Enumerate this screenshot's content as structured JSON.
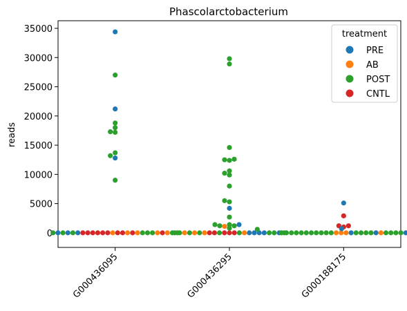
{
  "chart_data": {
    "type": "scatter",
    "title": "Phascolarctobacterium",
    "xlabel": "",
    "ylabel": "reads",
    "ylim": [
      -2500,
      36300
    ],
    "yticks": [
      0,
      5000,
      10000,
      15000,
      20000,
      25000,
      30000,
      35000
    ],
    "yticks_labels": [
      "0",
      "5000",
      "10000",
      "15000",
      "20000",
      "25000",
      "30000",
      "35000"
    ],
    "categories": [
      "G000436095",
      "G000436295",
      "G000188175"
    ],
    "grid": false,
    "legend": {
      "title": "treatment",
      "placement": "top-right",
      "entries": [
        "PRE",
        "AB",
        "POST",
        "CNTL"
      ]
    },
    "colors": {
      "PRE": "#1f77b4",
      "AB": "#ff7f0e",
      "POST": "#2ca02c",
      "CNTL": "#d62728"
    },
    "series": [
      {
        "category": "G000436095",
        "points": [
          {
            "t": "PRE",
            "y": 34400,
            "dx": 0
          },
          {
            "t": "POST",
            "y": 27000,
            "dx": 0
          },
          {
            "t": "PRE",
            "y": 21200,
            "dx": 0
          },
          {
            "t": "POST",
            "y": 18800,
            "dx": 0
          },
          {
            "t": "POST",
            "y": 18000,
            "dx": 0
          },
          {
            "t": "POST",
            "y": 17300,
            "dx": -7
          },
          {
            "t": "POST",
            "y": 17200,
            "dx": 0
          },
          {
            "t": "POST",
            "y": 13700,
            "dx": 0
          },
          {
            "t": "POST",
            "y": 13200,
            "dx": -7
          },
          {
            "t": "PRE",
            "y": 12800,
            "dx": 0
          },
          {
            "t": "POST",
            "y": 9000,
            "dx": 0
          }
        ],
        "baseline": [
          "POST",
          "PRE",
          "POST",
          "PRE",
          "POST",
          "PRE",
          "CNTL",
          "CNTL",
          "CNTL",
          "CNTL",
          "CNTL",
          "CNTL",
          "AB",
          "CNTL",
          "CNTL",
          "AB",
          "CNTL",
          "AB",
          "POST",
          "POST",
          "POST",
          "AB",
          "CNTL",
          "AB",
          "POST",
          "POST"
        ]
      },
      {
        "category": "G000436295",
        "points": [
          {
            "t": "POST",
            "y": 29800,
            "dx": 0
          },
          {
            "t": "POST",
            "y": 28900,
            "dx": 0
          },
          {
            "t": "POST",
            "y": 14600,
            "dx": 0
          },
          {
            "t": "POST",
            "y": 12500,
            "dx": -7
          },
          {
            "t": "POST",
            "y": 12400,
            "dx": 0
          },
          {
            "t": "POST",
            "y": 12600,
            "dx": 7
          },
          {
            "t": "POST",
            "y": 10600,
            "dx": 0
          },
          {
            "t": "POST",
            "y": 10200,
            "dx": -7
          },
          {
            "t": "POST",
            "y": 9900,
            "dx": 0
          },
          {
            "t": "POST",
            "y": 8000,
            "dx": 0
          },
          {
            "t": "POST",
            "y": 5500,
            "dx": -7
          },
          {
            "t": "POST",
            "y": 5300,
            "dx": 0
          },
          {
            "t": "PRE",
            "y": 4200,
            "dx": 0
          },
          {
            "t": "POST",
            "y": 2700,
            "dx": 0
          },
          {
            "t": "POST",
            "y": 1400,
            "dx": -21
          },
          {
            "t": "POST",
            "y": 1400,
            "dx": 0
          },
          {
            "t": "PRE",
            "y": 1400,
            "dx": 14
          },
          {
            "t": "POST",
            "y": 1200,
            "dx": -14
          },
          {
            "t": "AB",
            "y": 1100,
            "dx": -7
          },
          {
            "t": "POST",
            "y": 1200,
            "dx": 7
          },
          {
            "t": "POST",
            "y": 800,
            "dx": 0
          }
        ],
        "baseline": [
          "POST",
          "POST",
          "AB",
          "POST",
          "AB",
          "POST",
          "AB",
          "CNTL",
          "CNTL",
          "POST",
          "CNTL",
          "CNTL",
          "CNTL",
          "POST",
          "AB",
          "PRE",
          "PRE",
          "PRE",
          "PRE",
          "POST",
          "POST",
          "PRE",
          "POST"
        ]
      },
      {
        "category": "G000188175",
        "points": [
          {
            "t": "PRE",
            "y": 5100,
            "dx": 0
          },
          {
            "t": "CNTL",
            "y": 2900,
            "dx": 0
          },
          {
            "t": "CNTL",
            "y": 1200,
            "dx": -7
          },
          {
            "t": "CNTL",
            "y": 1200,
            "dx": 7
          },
          {
            "t": "CNTL",
            "y": 1000,
            "dx": 0
          },
          {
            "t": "PRE",
            "y": 700,
            "dx": -3
          },
          {
            "t": "POST",
            "y": 600,
            "dx": -125
          },
          {
            "t": "PRE",
            "y": 600,
            "dx": 101
          },
          {
            "t": "PRE",
            "y": 400,
            "dx": 101
          }
        ],
        "baseline": [
          "POST",
          "POST",
          "POST",
          "POST",
          "POST",
          "POST",
          "POST",
          "POST",
          "POST",
          "POST",
          "POST",
          "AB",
          "AB",
          "AB",
          "PRE",
          "POST",
          "POST",
          "POST",
          "POST",
          "PRE",
          "AB",
          "POST",
          "POST",
          "POST",
          "POST",
          "PRE"
        ]
      }
    ]
  }
}
